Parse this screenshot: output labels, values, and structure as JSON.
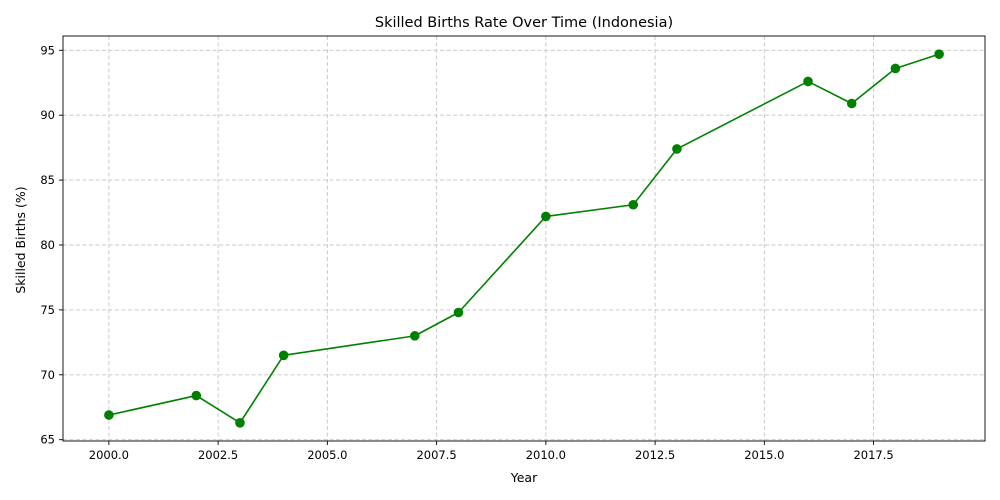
{
  "chart_data": {
    "type": "line",
    "title": "Skilled Births Rate Over Time (Indonesia)",
    "xlabel": "Year",
    "ylabel": "Skilled Births (%)",
    "xlim": [
      1998.95,
      2020.05
    ],
    "ylim": [
      64.9,
      96.1
    ],
    "xticks": [
      2000,
      2002.5,
      2005,
      2007.5,
      2010,
      2012.5,
      2015,
      2017.5
    ],
    "xtick_labels": [
      "2000.0",
      "2002.5",
      "2005.0",
      "2007.5",
      "2010.0",
      "2012.5",
      "2015.0",
      "2017.5"
    ],
    "yticks": [
      65,
      70,
      75,
      80,
      85,
      90,
      95
    ],
    "ytick_labels": [
      "65",
      "70",
      "75",
      "80",
      "85",
      "90",
      "95"
    ],
    "grid": true,
    "series": [
      {
        "color": "#008000",
        "marker": "circle",
        "x": [
          2000,
          2002,
          2003,
          2004,
          2007,
          2008,
          2010,
          2012,
          2013,
          2016,
          2017,
          2018,
          2019
        ],
        "y": [
          66.9,
          68.4,
          66.3,
          71.5,
          73.0,
          74.8,
          82.2,
          83.1,
          87.4,
          92.6,
          90.9,
          93.6,
          94.7
        ]
      }
    ]
  }
}
